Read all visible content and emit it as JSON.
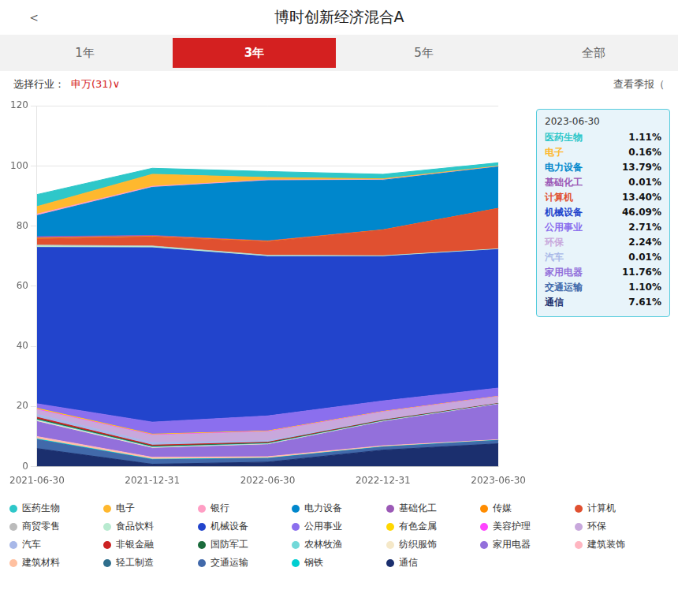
{
  "chart_data": {
    "type": "area",
    "title": "博时创新经济混合A",
    "categories": [
      "2021-06-30",
      "2021-12-31",
      "2022-06-30",
      "2022-12-31",
      "2023-06-30"
    ],
    "series": [
      {
        "name": "通信",
        "color": "#1B2F6E",
        "values": [
          6.0,
          0.8,
          1.5,
          5.5,
          7.61
        ]
      },
      {
        "name": "交通运输",
        "color": "#4169AA",
        "values": [
          3.0,
          1.5,
          1.2,
          1.0,
          1.1
        ]
      },
      {
        "name": "钢铁",
        "color": "#00CED1",
        "values": [
          0.2,
          0.15,
          0.1,
          0.08,
          0.06
        ]
      },
      {
        "name": "建筑材料",
        "color": "#FFC0A0",
        "values": [
          0.5,
          0.4,
          0.3,
          0.2,
          0.1
        ]
      },
      {
        "name": "建筑装饰",
        "color": "#FFB6C1",
        "values": [
          0.3,
          0.25,
          0.2,
          0.15,
          0.08
        ]
      },
      {
        "name": "家用电器",
        "color": "#9370DB",
        "values": [
          5.0,
          3.0,
          4.0,
          8.0,
          11.76
        ]
      },
      {
        "name": "纺织服饰",
        "color": "#F5E8C8",
        "values": [
          0.3,
          0.2,
          0.15,
          0.1,
          0.08
        ]
      },
      {
        "name": "农林牧渔",
        "color": "#72D8D8",
        "values": [
          0.3,
          0.25,
          0.2,
          0.15,
          0.08
        ]
      },
      {
        "name": "国防军工",
        "color": "#1A6B3C",
        "values": [
          0.3,
          0.25,
          0.2,
          0.15,
          0.08
        ]
      },
      {
        "name": "非银金融",
        "color": "#CC2222",
        "values": [
          0.5,
          0.35,
          0.25,
          0.15,
          0.08
        ]
      },
      {
        "name": "汽车",
        "color": "#A8B8E8",
        "values": [
          1.0,
          0.8,
          0.5,
          0.2,
          0.01
        ]
      },
      {
        "name": "环保",
        "color": "#C8A8DC",
        "values": [
          1.5,
          2.5,
          3.0,
          2.5,
          2.24
        ]
      },
      {
        "name": "美容护理",
        "color": "#FF44FF",
        "values": [
          0.2,
          0.15,
          0.12,
          0.08,
          0.06
        ]
      },
      {
        "name": "有色金属",
        "color": "#FFD700",
        "values": [
          0.3,
          0.2,
          0.15,
          0.1,
          0.08
        ]
      },
      {
        "name": "公用事业",
        "color": "#8B6FEE",
        "values": [
          1.5,
          4.0,
          5.0,
          3.5,
          2.71
        ]
      },
      {
        "name": "机械设备",
        "color": "#2244CC",
        "values": [
          52.0,
          58.0,
          53.0,
          48.0,
          46.09
        ]
      },
      {
        "name": "食品饮料",
        "color": "#B8EAD0",
        "values": [
          0.5,
          0.4,
          0.3,
          0.2,
          0.15
        ]
      },
      {
        "name": "商贸零售",
        "color": "#BBBBBB",
        "values": [
          0.3,
          0.2,
          0.15,
          0.1,
          0.08
        ]
      },
      {
        "name": "计算机",
        "color": "#E05030",
        "values": [
          2.0,
          3.0,
          4.5,
          8.5,
          13.4
        ]
      },
      {
        "name": "传媒",
        "color": "#FF8C00",
        "values": [
          0.3,
          0.2,
          0.15,
          0.08,
          0.05
        ]
      },
      {
        "name": "基础化工",
        "color": "#9B59B6",
        "values": [
          0.5,
          0.3,
          0.15,
          0.05,
          0.01
        ]
      },
      {
        "name": "电力设备",
        "color": "#0087CC",
        "values": [
          7.0,
          16.0,
          20.0,
          16.5,
          13.79
        ]
      },
      {
        "name": "银行",
        "color": "#FF9EC4",
        "values": [
          0.5,
          0.35,
          0.25,
          0.15,
          0.1
        ]
      },
      {
        "name": "电子",
        "color": "#FFB82E",
        "values": [
          2.5,
          4.0,
          0.8,
          0.3,
          0.16
        ]
      },
      {
        "name": "医药生物",
        "color": "#2EC7C9",
        "values": [
          4.0,
          2.0,
          2.0,
          1.5,
          1.11
        ]
      }
    ],
    "stacked": true,
    "ylim": [
      0,
      120
    ],
    "yticks": [
      0,
      20,
      40,
      60,
      80,
      100,
      120
    ],
    "grid": "y",
    "annotations": {
      "nav": "＜",
      "tabs": [
        {
          "text": "1年"
        },
        {
          "text": "3年",
          "active": true
        },
        {
          "text": "5年"
        },
        {
          "text": "全部"
        }
      ],
      "tab_active_color": "#D42020",
      "filter": {
        "left": [
          {
            "text": "选择行业：",
            "color": "#333333"
          },
          {
            "text": "申万(31)∨",
            "color": "#D42020"
          }
        ],
        "right": [
          {
            "text": "查看季报（",
            "color": "#555555"
          }
        ]
      },
      "tooltip": {
        "title": "2023-06-30",
        "items": [
          {
            "name": "医药生物",
            "label": "1.11%",
            "color": "#2EC7C9"
          },
          {
            "name": "电子",
            "label": "0.16%",
            "color": "#FFB82E"
          },
          {
            "name": "电力设备",
            "label": "13.79%",
            "color": "#0087CC"
          },
          {
            "name": "基础化工",
            "label": "0.01%",
            "color": "#9B59B6"
          },
          {
            "name": "计算机",
            "label": "13.40%",
            "color": "#E05030"
          },
          {
            "name": "机械设备",
            "label": "46.09%",
            "color": "#2244CC"
          },
          {
            "name": "公用事业",
            "label": "2.71%",
            "color": "#8B6FEE"
          },
          {
            "name": "环保",
            "label": "2.24%",
            "color": "#C8A8DC"
          },
          {
            "name": "汽车",
            "label": "0.01%",
            "color": "#A8B8E8"
          },
          {
            "name": "家用电器",
            "label": "11.76%",
            "color": "#9370DB"
          },
          {
            "name": "交通运输",
            "label": "1.10%",
            "color": "#4169AA"
          },
          {
            "name": "通信",
            "label": "7.61%",
            "color": "#1B2F6E"
          }
        ]
      },
      "legend_entries": [
        {
          "name": "医药生物",
          "color": "#2EC7C9"
        },
        {
          "name": "电子",
          "color": "#FFB82E"
        },
        {
          "name": "银行",
          "color": "#FF9EC4"
        },
        {
          "name": "电力设备",
          "color": "#0087CC"
        },
        {
          "name": "基础化工",
          "color": "#9B59B6"
        },
        {
          "name": "传媒",
          "color": "#FF8C00"
        },
        {
          "name": "计算机",
          "color": "#E05030"
        },
        {
          "name": "商贸零售",
          "color": "#BBBBBB"
        },
        {
          "name": "食品饮料",
          "color": "#B8EAD0"
        },
        {
          "name": "机械设备",
          "color": "#2244CC"
        },
        {
          "name": "公用事业",
          "color": "#8B6FEE"
        },
        {
          "name": "有色金属",
          "color": "#FFD700"
        },
        {
          "name": "美容护理",
          "color": "#FF44FF"
        },
        {
          "name": "环保",
          "color": "#C8A8DC"
        },
        {
          "name": "汽车",
          "color": "#A8B8E8"
        },
        {
          "name": "非银金融",
          "color": "#CC2222"
        },
        {
          "name": "国防军工",
          "color": "#1A6B3C"
        },
        {
          "name": "农林牧渔",
          "color": "#72D8D8"
        },
        {
          "name": "纺织服饰",
          "color": "#F5E8C8"
        },
        {
          "name": "家用电器",
          "color": "#9370DB"
        },
        {
          "name": "建筑装饰",
          "color": "#FFB6C1"
        },
        {
          "name": "建筑材料",
          "color": "#FFC0A0"
        },
        {
          "name": "轻工制造",
          "color": "#2F6E8C"
        },
        {
          "name": "交通运输",
          "color": "#4169AA"
        },
        {
          "name": "钢铁",
          "color": "#00CED1"
        },
        {
          "name": "通信",
          "color": "#1B2F6E"
        }
      ]
    }
  }
}
